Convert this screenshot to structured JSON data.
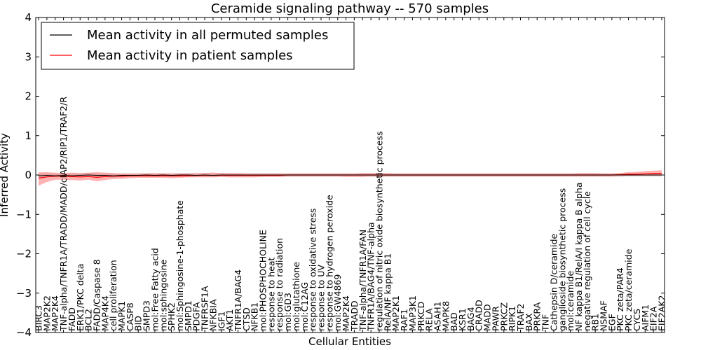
{
  "chart_data": {
    "type": "line",
    "title": "Ceramide signaling pathway -- 570 samples",
    "xlabel": "Cellular Entities",
    "ylabel": "Inferred Activity",
    "ylim": [
      -4,
      4
    ],
    "yticks": [
      -4,
      -3,
      -2,
      -1,
      0,
      1,
      2,
      3,
      4
    ],
    "ytick_labels": [
      "−4",
      "−3",
      "−2",
      "−1",
      "0",
      "1",
      "2",
      "3",
      "4"
    ],
    "grid": false,
    "legend": {
      "placement": "top-left",
      "entries": [
        {
          "label": "Mean activity in all permuted samples",
          "color": "#000000"
        },
        {
          "label": "Mean activity in patient samples",
          "color": "#ff0000"
        }
      ]
    },
    "categories": [
      "BIRC3",
      "MAP2K2",
      "MAP2K4",
      "TNF-alpha/TNFR1A/TRADD/MADD/cIAP2/RIP1/TRAF2/R",
      "FADD",
      "ERK1/PKC delta",
      "BCL2",
      "FADD/Caspase 8",
      "MAP4K4",
      "cell proliferation",
      "MAPK1",
      "CASP8",
      "BID",
      "SMPD3",
      "mol:Free Fatty acid",
      "mol:sphingosine",
      "SPHK2",
      "mol:Sphingosine-1-phosphate",
      "SMPD1",
      "PDGFA",
      "TNFRSF1A",
      "NFKBIA",
      "IGF1",
      "AKT1",
      "TNFR1A/BAG4",
      "CTSD",
      "NFKB1",
      "mol:PHOSPHOCHOLINE",
      "response to heat",
      "response to radiation",
      "mol:GD3",
      "mol:glutathione",
      "mol:C12AG",
      "response to oxidative stress",
      "response to UV",
      "response to hydrogen peroxide",
      "mol:GW4869",
      "MAP2K4",
      "TRADD",
      "TNF-alpha/TNFR1A/FAN",
      "TNFR1A/BAG4/TNF-alpha",
      "regulation of nitric oxide biosynthetic process",
      "RelA/NF kappa B1",
      "MAP2K1",
      "RAF1",
      "MAP3K1",
      "PRKCD",
      "RELA",
      "ASAH1",
      "MAPK8",
      "BAD",
      "KSR1",
      "BAG4",
      "CRADD",
      "MADD",
      "PAWR",
      "PRKCZ",
      "RIPK1",
      "TRAF2",
      "BAX",
      "PRKRA",
      "TNF",
      "Cathepsin D/ceramide",
      "ganglioside biosynthetic process",
      "mol:ceramide",
      "NF kappa B1/RelA/I kappa B alpha",
      "negative regulation of cell cycle",
      "RB1",
      "NSMAF",
      "EGF",
      "PKC zeta/PAR4",
      "PKC zeta/ceramide",
      "CYCS",
      "AIFM1",
      "EIF2A",
      "EIF2AK2"
    ],
    "series": [
      {
        "name": "Mean activity in all permuted samples",
        "color": "#000000",
        "values": [
          -0.02,
          -0.01,
          -0.02,
          -0.01,
          -0.02,
          -0.01,
          0.0,
          -0.01,
          -0.01,
          -0.02,
          -0.01,
          -0.01,
          -0.01,
          0.0,
          -0.01,
          0.0,
          -0.01,
          0.0,
          0.0,
          -0.01,
          0.0,
          -0.01,
          0.0,
          0.0,
          0.0,
          0.0,
          0.0,
          0.0,
          0.0,
          0.0,
          0.0,
          0.0,
          0.0,
          0.0,
          0.0,
          0.0,
          0.0,
          0.0,
          0.0,
          0.0,
          0.0,
          0.0,
          0.0,
          0.0,
          0.0,
          0.0,
          0.0,
          0.0,
          0.0,
          0.0,
          0.0,
          0.0,
          0.0,
          0.0,
          0.0,
          0.0,
          0.0,
          0.0,
          0.0,
          0.0,
          0.0,
          0.0,
          0.0,
          0.0,
          0.0,
          0.0,
          0.0,
          0.0,
          0.0,
          0.0,
          0.0,
          0.0,
          0.0,
          0.0,
          0.0,
          0.0
        ],
        "lower": [
          -0.07,
          -0.05,
          -0.06,
          -0.05,
          -0.06,
          -0.05,
          -0.04,
          -0.05,
          -0.05,
          -0.07,
          -0.05,
          -0.05,
          -0.04,
          -0.04,
          -0.05,
          -0.04,
          -0.05,
          -0.04,
          -0.04,
          -0.05,
          -0.04,
          -0.05,
          -0.04,
          -0.04,
          -0.04,
          -0.04,
          -0.04,
          -0.04,
          -0.04,
          -0.04,
          -0.04,
          -0.04,
          -0.04,
          -0.04,
          -0.04,
          -0.04,
          -0.04,
          -0.04,
          -0.04,
          -0.04,
          -0.04,
          -0.04,
          -0.04,
          -0.04,
          -0.04,
          -0.04,
          -0.04,
          -0.04,
          -0.04,
          -0.04,
          -0.04,
          -0.04,
          -0.04,
          -0.04,
          -0.04,
          -0.04,
          -0.04,
          -0.04,
          -0.04,
          -0.04,
          -0.04,
          -0.04,
          -0.04,
          -0.04,
          -0.04,
          -0.04,
          -0.04,
          -0.04,
          -0.04,
          -0.04,
          -0.04,
          -0.04,
          -0.04,
          -0.04,
          -0.04,
          -0.04
        ],
        "upper": [
          0.04,
          0.04,
          0.03,
          0.04,
          0.03,
          0.04,
          0.05,
          0.04,
          0.04,
          0.03,
          0.04,
          0.04,
          0.04,
          0.05,
          0.04,
          0.05,
          0.04,
          0.05,
          0.05,
          0.04,
          0.05,
          0.04,
          0.05,
          0.04,
          0.04,
          0.04,
          0.04,
          0.04,
          0.04,
          0.04,
          0.04,
          0.04,
          0.04,
          0.04,
          0.04,
          0.04,
          0.04,
          0.04,
          0.04,
          0.04,
          0.04,
          0.04,
          0.04,
          0.04,
          0.04,
          0.04,
          0.04,
          0.04,
          0.04,
          0.04,
          0.04,
          0.04,
          0.04,
          0.04,
          0.04,
          0.04,
          0.04,
          0.04,
          0.04,
          0.04,
          0.04,
          0.04,
          0.04,
          0.04,
          0.04,
          0.04,
          0.04,
          0.04,
          0.04,
          0.04,
          0.04,
          0.04,
          0.04,
          0.04,
          0.04,
          0.04
        ]
      },
      {
        "name": "Mean activity in patient samples",
        "color": "#ff0000",
        "values": [
          -0.08,
          -0.05,
          -0.03,
          -0.03,
          -0.04,
          -0.05,
          -0.04,
          -0.06,
          -0.04,
          -0.03,
          -0.03,
          -0.02,
          -0.02,
          -0.02,
          -0.02,
          -0.02,
          -0.02,
          -0.02,
          -0.02,
          -0.01,
          -0.01,
          -0.01,
          -0.01,
          -0.01,
          -0.01,
          -0.01,
          -0.01,
          -0.01,
          -0.01,
          -0.01,
          0.0,
          0.0,
          0.0,
          0.0,
          0.0,
          0.0,
          0.0,
          0.0,
          0.0,
          0.0,
          0.0,
          0.0,
          0.0,
          0.0,
          0.0,
          0.0,
          0.0,
          0.0,
          0.0,
          0.0,
          0.0,
          0.0,
          0.0,
          0.0,
          0.0,
          0.0,
          0.0,
          0.0,
          0.0,
          0.0,
          0.0,
          0.0,
          0.0,
          0.0,
          0.0,
          0.0,
          0.0,
          0.0,
          0.0,
          0.0,
          0.01,
          0.02,
          0.02,
          0.03,
          0.04,
          0.04
        ],
        "lower": [
          -0.27,
          -0.18,
          -0.12,
          -0.12,
          -0.13,
          -0.14,
          -0.12,
          -0.16,
          -0.13,
          -0.1,
          -0.1,
          -0.08,
          -0.07,
          -0.07,
          -0.07,
          -0.07,
          -0.08,
          -0.07,
          -0.06,
          -0.06,
          -0.06,
          -0.06,
          -0.05,
          -0.06,
          -0.06,
          -0.06,
          -0.06,
          -0.05,
          -0.05,
          -0.05,
          -0.04,
          -0.04,
          -0.04,
          -0.04,
          -0.04,
          -0.04,
          -0.04,
          -0.05,
          -0.05,
          -0.05,
          -0.04,
          -0.04,
          -0.04,
          -0.04,
          -0.04,
          -0.04,
          -0.04,
          -0.04,
          -0.04,
          -0.04,
          -0.04,
          -0.04,
          -0.04,
          -0.04,
          -0.04,
          -0.04,
          -0.04,
          -0.04,
          -0.04,
          -0.04,
          -0.04,
          -0.04,
          -0.04,
          -0.04,
          -0.04,
          -0.04,
          -0.04,
          -0.04,
          -0.04,
          -0.04,
          -0.03,
          -0.02,
          -0.02,
          -0.02,
          -0.02,
          -0.02
        ],
        "upper": [
          0.07,
          0.07,
          0.06,
          0.05,
          0.06,
          0.05,
          0.06,
          0.07,
          0.06,
          0.05,
          0.04,
          0.04,
          0.04,
          0.04,
          0.05,
          0.04,
          0.04,
          0.04,
          0.04,
          0.05,
          0.05,
          0.06,
          0.05,
          0.05,
          0.05,
          0.04,
          0.04,
          0.04,
          0.04,
          0.04,
          0.04,
          0.04,
          0.04,
          0.04,
          0.04,
          0.04,
          0.04,
          0.04,
          0.04,
          0.05,
          0.05,
          0.05,
          0.05,
          0.04,
          0.04,
          0.04,
          0.04,
          0.04,
          0.04,
          0.04,
          0.04,
          0.04,
          0.04,
          0.04,
          0.04,
          0.04,
          0.04,
          0.04,
          0.04,
          0.04,
          0.04,
          0.04,
          0.04,
          0.04,
          0.04,
          0.05,
          0.05,
          0.05,
          0.04,
          0.04,
          0.05,
          0.07,
          0.08,
          0.1,
          0.11,
          0.12
        ]
      }
    ]
  }
}
